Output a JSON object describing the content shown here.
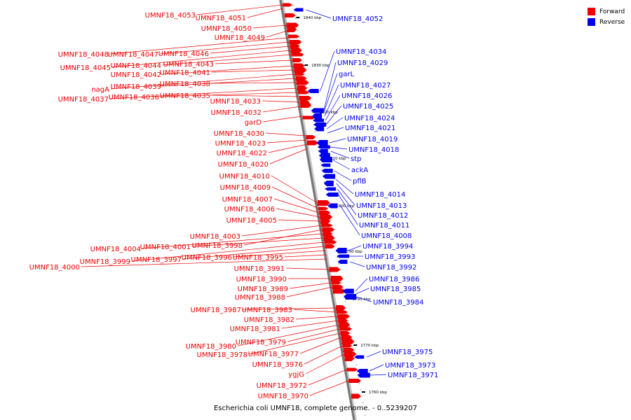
{
  "caption": "Escherichia coli UMNF18, complete genome. - 0..5239207",
  "legend": [
    {
      "label": "Forward",
      "color": "#ee0000"
    },
    {
      "label": "Reverse",
      "color": "#0000ee"
    }
  ],
  "colors": {
    "forward": "#ee0000",
    "reverse": "#0000ee",
    "backbone": "#777777"
  },
  "chart_data": {
    "type": "genome-map",
    "scale_ticks": [
      "1840 kbp",
      "1830 kbp",
      "1820 kbp",
      "1810 kbp",
      "1800 kbp",
      "1790 kbp",
      "1780 kbp",
      "1770 kbp",
      "1760 kbp"
    ],
    "forward_genes": [
      "UMNF18_4053",
      "UMNF18_4051",
      "UMNF18_4050",
      "UMNF18_4049",
      "UMNF18_4048",
      "UMNF18_4047",
      "UMNF18_4046",
      "UMNF18_4045",
      "UMNF18_4044",
      "UMNF18_4043",
      "UMNF18_4042",
      "UMNF18_4041",
      "nagA",
      "UMNF18_4039",
      "UMNF18_4038",
      "UMNF18_4037",
      "UMNF18_4036",
      "UMNF18_4035",
      "UMNF18_4033",
      "UMNF18_4032",
      "garD",
      "UMNF18_4030",
      "UMNF18_4023",
      "UMNF18_4022",
      "UMNF18_4020",
      "UMNF18_4010",
      "UMNF18_4009",
      "UMNF18_4007",
      "UMNF18_4006",
      "UMNF18_4005",
      "UMNF18_4003",
      "UMNF18_3998",
      "UMNF18_4004",
      "UMNF18_4001",
      "UMNF18_3999",
      "UMNF18_3997",
      "UMNF18_3996",
      "UMNF18_3995",
      "UMNF18_4000",
      "UMNF18_3991",
      "UMNF18_3990",
      "UMNF18_3989",
      "UMNF18_3988",
      "UMNF18_3987",
      "UMNF18_3983",
      "UMNF18_3982",
      "UMNF18_3981",
      "UMNF18_3980",
      "UMNF18_3979",
      "UMNF18_3978",
      "UMNF18_3977",
      "UMNF18_3976",
      "ygjG",
      "UMNF18_3972",
      "UMNF18_3970"
    ],
    "reverse_genes": [
      "UMNF18_4052",
      "UMNF18_4034",
      "UMNF18_4029",
      "garL",
      "UMNF18_4027",
      "UMNF18_4026",
      "UMNF18_4025",
      "UMNF18_4024",
      "UMNF18_4021",
      "UMNF18_4019",
      "UMNF18_4018",
      "stp",
      "ackA",
      "pflB",
      "UMNF18_4014",
      "UMNF18_4013",
      "UMNF18_4012",
      "UMNF18_4011",
      "UMNF18_4008",
      "UMNF18_3994",
      "UMNF18_3993",
      "UMNF18_3992",
      "UMNF18_3986",
      "UMNF18_3985",
      "UMNF18_3984",
      "UMNF18_3975",
      "UMNF18_3973",
      "UMNF18_3971"
    ]
  }
}
